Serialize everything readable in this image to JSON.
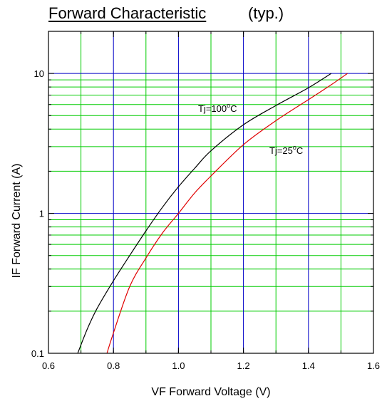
{
  "title": "Forward Characteristic",
  "subtitle": "(typ.)",
  "chart_data": {
    "type": "line",
    "title": "Forward Characteristic",
    "subtitle": "(typ.)",
    "xlabel": "VF   Forward Voltage   (V)",
    "ylabel": "IF   Forward Current   (A)",
    "xlim": [
      0.6,
      1.6
    ],
    "ylim": [
      0.1,
      20
    ],
    "yscale": "log",
    "grid": true,
    "x_ticks": [
      0.6,
      0.8,
      1.0,
      1.2,
      1.4,
      1.6
    ],
    "x_tick_labels": [
      "0.6",
      "0.8",
      "1.0",
      "1.2",
      "1.4",
      "1.6"
    ],
    "y_ticks": [
      0.1,
      1,
      10
    ],
    "y_tick_labels": [
      "0.1",
      "1",
      "10"
    ],
    "series": [
      {
        "name": "Tj=100°C",
        "name_base": "Tj=100",
        "name_sup": "o",
        "name_unit": "C",
        "color": "#000000",
        "x": [
          0.69,
          0.72,
          0.75,
          0.8,
          0.85,
          0.9,
          0.95,
          1.0,
          1.05,
          1.1,
          1.2,
          1.3,
          1.4,
          1.47
        ],
        "y": [
          0.1,
          0.15,
          0.21,
          0.33,
          0.5,
          0.75,
          1.1,
          1.55,
          2.1,
          2.8,
          4.3,
          5.9,
          7.9,
          10
        ]
      },
      {
        "name": "Tj=25°C",
        "name_base": "Tj=25",
        "name_sup": "o",
        "name_unit": "C",
        "color": "#e00000",
        "x": [
          0.78,
          0.8,
          0.85,
          0.9,
          0.95,
          1.0,
          1.05,
          1.1,
          1.2,
          1.3,
          1.4,
          1.47,
          1.52
        ],
        "y": [
          0.1,
          0.14,
          0.3,
          0.48,
          0.72,
          1.0,
          1.4,
          1.85,
          3.1,
          4.6,
          6.5,
          8.3,
          10
        ]
      }
    ]
  },
  "colors": {
    "major_grid": "#0000c8",
    "minor_grid": "#00cc00",
    "axis": "#000000"
  }
}
